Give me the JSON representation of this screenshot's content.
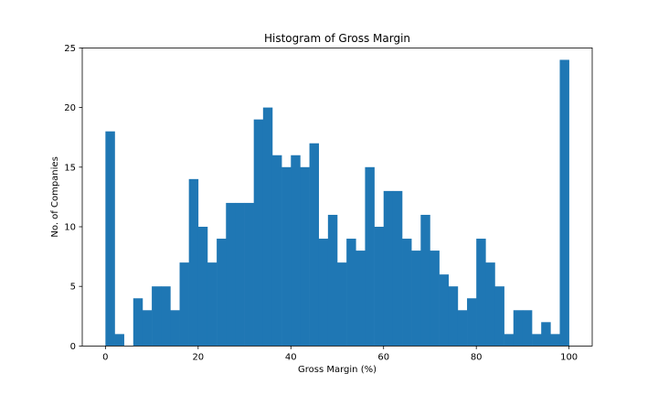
{
  "chart_data": {
    "type": "bar",
    "title": "Histogram of Gross Margin",
    "xlabel": "Gross Margin (%)",
    "ylabel": "No. of Companies",
    "xlim": [
      -5,
      105
    ],
    "ylim": [
      0,
      25
    ],
    "bin_width": 2,
    "bin_edges_start": 0,
    "x_ticks": [
      0,
      20,
      40,
      60,
      80,
      100
    ],
    "y_ticks": [
      0,
      5,
      10,
      15,
      20,
      25
    ],
    "values": [
      18,
      1,
      0,
      4,
      3,
      5,
      5,
      3,
      7,
      14,
      10,
      7,
      9,
      12,
      12,
      12,
      19,
      20,
      16,
      15,
      16,
      15,
      17,
      9,
      11,
      7,
      9,
      8,
      15,
      10,
      13,
      13,
      9,
      8,
      11,
      8,
      6,
      5,
      3,
      4,
      9,
      7,
      5,
      1,
      3,
      3,
      1,
      2,
      1,
      24
    ],
    "color": "#1f77b4",
    "grid": false
  }
}
